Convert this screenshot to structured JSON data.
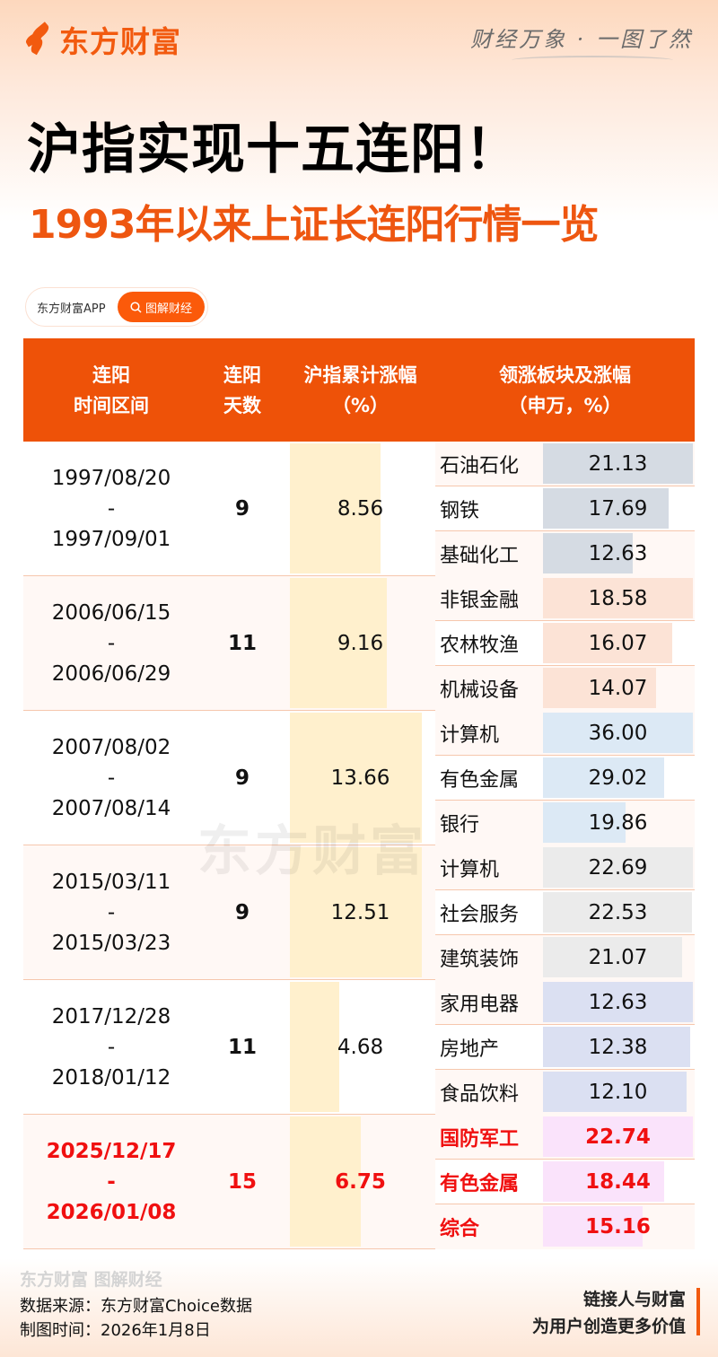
{
  "brand": {
    "name": "东方财富",
    "slogan": "财经万象 · 一图了然"
  },
  "title": "沪指实现十五连阳！",
  "subtitle": "1993年以来上证长连阳行情一览",
  "pill": {
    "app_label": "东方财富APP",
    "search_label": "图解财经",
    "icon": "search-icon"
  },
  "table": {
    "headers": {
      "period": [
        "连阳",
        "时间区间"
      ],
      "days": [
        "连阳",
        "天数"
      ],
      "index": [
        "沪指累计涨幅",
        "（%）"
      ],
      "sectors": [
        "领涨板块及涨幅",
        "（申万，%）"
      ]
    },
    "rows": [
      {
        "start": "1997/08/20",
        "sep": "-",
        "end": "1997/09/01",
        "days": "9",
        "index": 8.56,
        "sectors": [
          {
            "name": "石油石化",
            "value": 21.13
          },
          {
            "name": "钢铁",
            "value": 17.69
          },
          {
            "name": "基础化工",
            "value": 12.63
          }
        ],
        "bar_color": "#d5dbe3"
      },
      {
        "start": "2006/06/15",
        "sep": "-",
        "end": "2006/06/29",
        "days": "11",
        "index": 9.16,
        "sectors": [
          {
            "name": "非银金融",
            "value": 18.58
          },
          {
            "name": "农林牧渔",
            "value": 16.07
          },
          {
            "name": "机械设备",
            "value": 14.07
          }
        ],
        "bar_color": "#fce3d6"
      },
      {
        "start": "2007/08/02",
        "sep": "-",
        "end": "2007/08/14",
        "days": "9",
        "index": 13.66,
        "sectors": [
          {
            "name": "计算机",
            "value": 36.0
          },
          {
            "name": "有色金属",
            "value": 29.02
          },
          {
            "name": "银行",
            "value": 19.86
          }
        ],
        "bar_color": "#dce9f5"
      },
      {
        "start": "2015/03/11",
        "sep": "-",
        "end": "2015/03/23",
        "days": "9",
        "index": 12.51,
        "sectors": [
          {
            "name": "计算机",
            "value": 22.69
          },
          {
            "name": "社会服务",
            "value": 22.53
          },
          {
            "name": "建筑装饰",
            "value": 21.07
          }
        ],
        "bar_color": "#ebebeb"
      },
      {
        "start": "2017/12/28",
        "sep": "-",
        "end": "2018/01/12",
        "days": "11",
        "index": 4.68,
        "sectors": [
          {
            "name": "家用电器",
            "value": 12.63
          },
          {
            "name": "房地产",
            "value": 12.38
          },
          {
            "name": "食品饮料",
            "value": 12.1
          }
        ],
        "bar_color": "#dbe0f2"
      },
      {
        "start": "2025/12/17",
        "sep": "-",
        "end": "2026/01/08",
        "days": "15",
        "index": 6.75,
        "highlight": true,
        "sectors": [
          {
            "name": "国防军工",
            "value": 22.74
          },
          {
            "name": "有色金属",
            "value": 18.44
          },
          {
            "name": "综合",
            "value": 15.16
          }
        ],
        "bar_color": "#fae3fb"
      }
    ],
    "index_bar_color": "#fff0cd",
    "header_color": "#ee5208",
    "highlight_color": "#f01010"
  },
  "footer": {
    "logo": "东方财富 图解财经",
    "source": "数据来源：东方财富Choice数据",
    "date": "制图时间：2026年1月8日",
    "tagline1": "链接人与财富",
    "tagline2": "为用户创造更多价值"
  }
}
